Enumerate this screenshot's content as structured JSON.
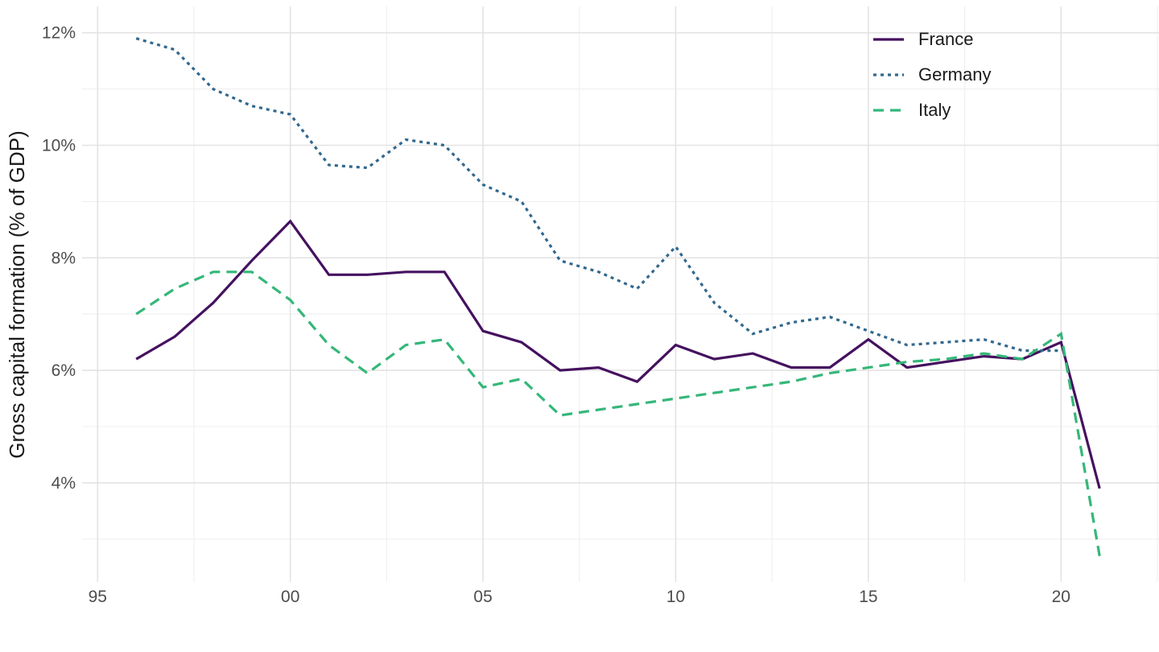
{
  "chart_data": {
    "type": "line",
    "title": "",
    "xlabel": "",
    "ylabel": "Gross capital formation (% of GDP)",
    "x": [
      1996,
      1997,
      1998,
      1999,
      2000,
      2001,
      2002,
      2003,
      2004,
      2005,
      2006,
      2007,
      2008,
      2009,
      2010,
      2011,
      2012,
      2013,
      2014,
      2015,
      2016,
      2017,
      2018,
      2019,
      2020,
      2021
    ],
    "series": [
      {
        "name": "France",
        "color": "#45115f",
        "dash": "solid",
        "values": [
          6.2,
          6.6,
          7.2,
          7.95,
          8.65,
          7.7,
          7.7,
          7.75,
          7.75,
          6.7,
          6.5,
          6.0,
          6.05,
          5.8,
          6.45,
          6.2,
          6.3,
          6.05,
          6.05,
          6.55,
          6.05,
          6.15,
          6.25,
          6.2,
          6.5,
          3.9
        ]
      },
      {
        "name": "Germany",
        "color": "#31688e",
        "dash": "dotted",
        "values": [
          11.9,
          11.7,
          11.0,
          10.7,
          10.55,
          9.65,
          9.6,
          10.1,
          10.0,
          9.3,
          9.0,
          7.95,
          7.75,
          7.45,
          8.2,
          7.2,
          6.65,
          6.85,
          6.95,
          6.7,
          6.45,
          6.5,
          6.55,
          6.35,
          6.35,
          null
        ]
      },
      {
        "name": "Italy",
        "color": "#35b779",
        "dash": "dashed",
        "values": [
          7.0,
          7.45,
          7.75,
          7.75,
          7.25,
          6.45,
          5.95,
          6.45,
          6.55,
          5.7,
          5.85,
          5.2,
          5.3,
          5.4,
          5.5,
          5.6,
          5.7,
          5.8,
          5.95,
          6.05,
          6.15,
          6.2,
          6.3,
          6.2,
          6.65,
          2.7
        ]
      }
    ],
    "x_ticks": [
      {
        "label": "95",
        "year": 1995
      },
      {
        "label": "00",
        "year": 2000
      },
      {
        "label": "05",
        "year": 2005
      },
      {
        "label": "10",
        "year": 2010
      },
      {
        "label": "15",
        "year": 2015
      },
      {
        "label": "20",
        "year": 2020
      }
    ],
    "y_ticks": [
      {
        "label": "4%",
        "value": 4
      },
      {
        "label": "6%",
        "value": 6
      },
      {
        "label": "8%",
        "value": 8
      },
      {
        "label": "10%",
        "value": 10
      },
      {
        "label": "12%",
        "value": 12
      }
    ],
    "x_minor_breaks": [
      1997.5,
      2002.5,
      2007.5,
      2012.5,
      2017.5,
      2022.5
    ],
    "y_minor_breaks": [
      3,
      5,
      7,
      9,
      11
    ],
    "xlim": [
      1994.6,
      2022.6
    ],
    "ylim": [
      2.45,
      12.45
    ],
    "grid": true,
    "legend_position": "top-right"
  },
  "colors": {
    "background": "#ffffff",
    "grid_major": "#e3e3e3",
    "grid_minor": "#efefef",
    "tick_text": "#4d4d4d",
    "axis_title_text": "#1a1a1a"
  }
}
